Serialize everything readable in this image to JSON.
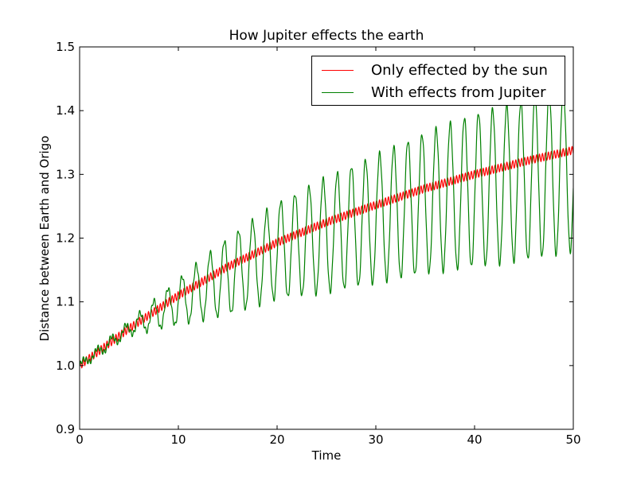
{
  "chart_data": {
    "type": "line",
    "title": "How Jupiter effects the earth",
    "xlabel": "Time",
    "ylabel": "Distance between Earth and Origo",
    "xlim": [
      0,
      50
    ],
    "ylim": [
      0.9,
      1.5
    ],
    "xticks": [
      "0",
      "10",
      "20",
      "30",
      "40",
      "50"
    ],
    "yticks": [
      "0.9",
      "1.0",
      "1.1",
      "1.2",
      "1.3",
      "1.4",
      "1.5"
    ],
    "grid": false,
    "legend_position": "top-right",
    "series": [
      {
        "name": "Only effected by the sun",
        "color": "#ff0000",
        "x": [
          0,
          5,
          10,
          15,
          20,
          25,
          30,
          35,
          40,
          45,
          50
        ],
        "y": [
          1.0,
          1.058,
          1.11,
          1.155,
          1.193,
          1.225,
          1.252,
          1.278,
          1.3,
          1.32,
          1.338
        ],
        "oscillation_amplitude": 0.006,
        "oscillation_period": 0.3
      },
      {
        "name": "With effects from Jupiter",
        "color": "#008000",
        "x": [
          0,
          5,
          10,
          15,
          20,
          25,
          30,
          35,
          40,
          45,
          50
        ],
        "center": [
          1.0,
          1.058,
          1.1,
          1.14,
          1.18,
          1.205,
          1.23,
          1.255,
          1.275,
          1.29,
          1.31
        ],
        "amplitude": [
          0.005,
          0.01,
          0.035,
          0.06,
          0.075,
          0.09,
          0.1,
          0.11,
          0.12,
          0.125,
          0.13
        ],
        "oscillation_period": 1.43
      }
    ]
  }
}
